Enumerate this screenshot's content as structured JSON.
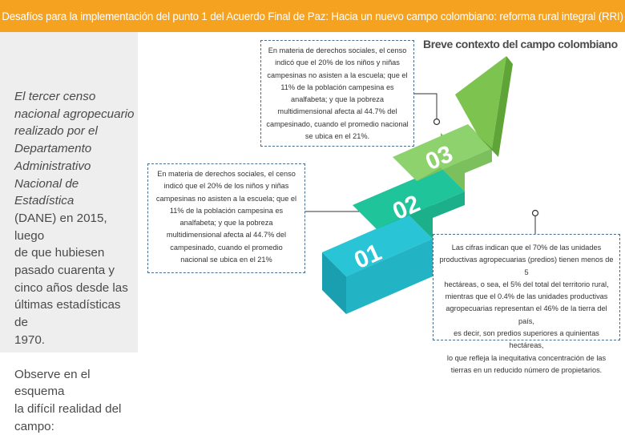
{
  "banner": {
    "title": "Desafíos para la implementación del punto 1 del Acuerdo Final de Paz: Hacia un nuevo campo colombiano: reforma rural integral (RRI)"
  },
  "sidebar": {
    "intro_line1": "El tercer censo",
    "intro_line2": "nacional agropecuario",
    "intro_line3": "realizado por el",
    "intro_line4": "Departamento",
    "intro_line5": "Administrativo",
    "intro_line6": "Nacional de Estadística",
    "intro_line7": "(DANE) en 2015, luego",
    "intro_line8": "de que hubiesen",
    "intro_line9": "pasado cuarenta y",
    "intro_line10": "cinco años desde las",
    "intro_line11": "últimas estadísticas de",
    "intro_line12": "1970.",
    "observe_line1": "Observe en el esquema",
    "observe_line2": "la difícil realidad del",
    "observe_line3": "campo:"
  },
  "diagram": {
    "title": "Breve contexto del campo colombiano",
    "steps": [
      {
        "label": "01",
        "color": "#29c4d6"
      },
      {
        "label": "02",
        "color": "#20c49a"
      },
      {
        "label": "03",
        "color": "#8ed26e"
      }
    ],
    "arrow_color": "#7cc44f"
  },
  "callouts": {
    "top": {
      "lines": [
        "En materia de derechos sociales, el censo",
        "indicó que el 20% de los niños y niñas",
        "campesinas no asisten a la escuela; que el",
        "11% de la población campesina es",
        "analfabeta; y que la pobreza",
        "multidimensional afecta al 44.7% del",
        "campesinado, cuando el promedio nacional",
        "se ubica en el 21%."
      ]
    },
    "left": {
      "lines": [
        "En materia de derechos sociales, el censo",
        "indicó que el 20% de los niños y niñas",
        "campesinas no asisten a la escuela; que el",
        "11% de la población campesina es",
        "analfabeta; y que la pobreza",
        "multidimensional afecta al 44.7% del",
        "campesinado, cuando el promedio",
        "nacional se ubica en el 21%"
      ]
    },
    "right": {
      "lines": [
        "Las cifras indican que el 70% de las unidades",
        "productivas agropecuarias (predios) tienen menos de 5",
        "hectáreas, o sea, el 5% del total del territorio rural,",
        "mientras que el 0.4% de las unidades productivas",
        "agropecuarias representan el 46% de la tierra del país,",
        "es decir, son predios superiores a quinientas hectáreas,",
        "lo que refleja la inequitativa concentración de las",
        "tierras en un reducido número de propietarios."
      ]
    }
  }
}
